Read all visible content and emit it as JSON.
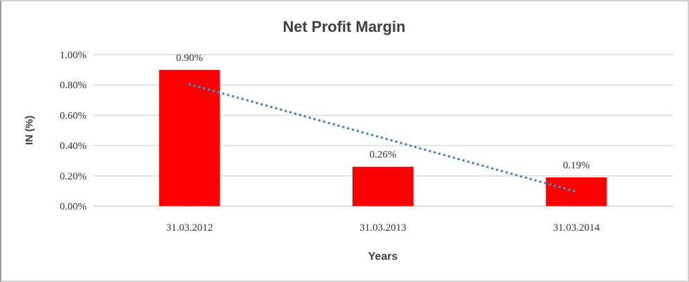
{
  "page": {
    "background": "#ffffff",
    "frame_border_color": "#d2d2d2"
  },
  "chart_data": {
    "type": "bar",
    "title": "Net Profit Margin",
    "xlabel": "Years",
    "ylabel": "IN (%)",
    "categories": [
      "31.03.2012",
      "31.03.2013",
      "31.03.2014"
    ],
    "values": [
      0.9,
      0.26,
      0.19
    ],
    "data_labels": [
      "0.90%",
      "0.26%",
      "0.19%"
    ],
    "ylim": [
      0.0,
      1.0
    ],
    "ytick_values": [
      0.0,
      0.2,
      0.4,
      0.6,
      0.8,
      1.0
    ],
    "ytick_labels": [
      "0.00%",
      "0.20%",
      "0.40%",
      "0.60%",
      "0.80%",
      "1.00%"
    ],
    "grid": true,
    "legend": "none",
    "bar_color": "#ff0000",
    "gridline_color": "#d9d9d9",
    "axis_line_color": "#cfcfcf",
    "text_color": "#3f3f3f",
    "trendline": {
      "type": "linear",
      "style": "dotted",
      "color": "#4e86c6",
      "start_value": 0.805,
      "end_value": 0.095
    }
  }
}
